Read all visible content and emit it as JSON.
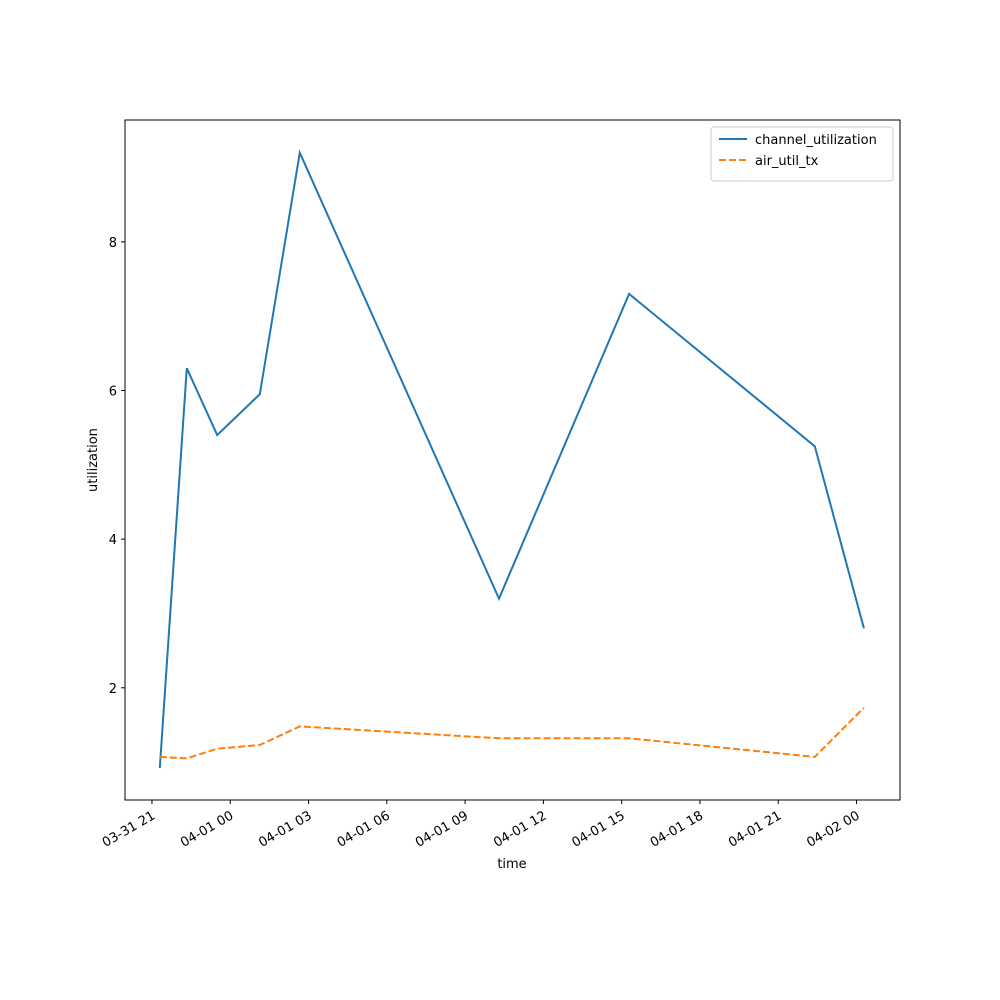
{
  "chart_data": {
    "type": "line",
    "x_label": "time",
    "y_label": "utilization",
    "x": [
      "03-31 21:18",
      "03-31 22:20",
      "03-31 23:30",
      "04-01 01:08",
      "04-01 02:40",
      "04-01 10:18",
      "04-01 15:17",
      "04-01 22:24",
      "04-02 00:17"
    ],
    "series": [
      {
        "name": "channel_utilization",
        "color": "#1f77b4",
        "dash": "solid",
        "values": [
          0.92,
          6.3,
          5.4,
          5.95,
          9.2,
          3.2,
          7.3,
          5.25,
          2.8
        ]
      },
      {
        "name": "air_util_tx",
        "color": "#ff7f0e",
        "dash": "dashed",
        "values": [
          1.07,
          1.05,
          1.18,
          1.23,
          1.48,
          1.32,
          1.32,
          1.07,
          1.73
        ]
      }
    ],
    "xlim": [
      "03-31 19:58",
      "04-02 01:40"
    ],
    "xticks": [
      "03-31 21",
      "04-01 00",
      "04-01 03",
      "04-01 06",
      "04-01 09",
      "04-01 12",
      "04-01 15",
      "04-01 18",
      "04-01 21",
      "04-02 00"
    ],
    "ylim": [
      0.49,
      9.64
    ],
    "yticks": [
      2,
      4,
      6,
      8
    ],
    "legend": "upper right"
  }
}
